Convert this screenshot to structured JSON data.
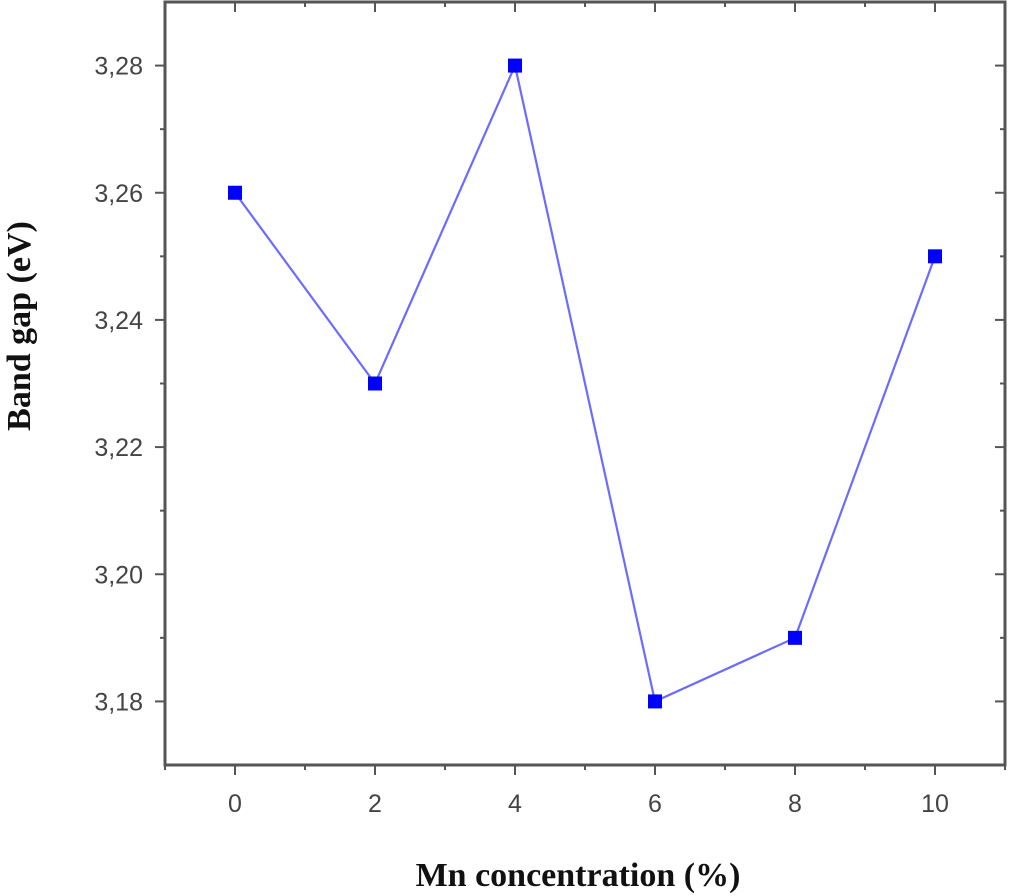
{
  "chart_data": {
    "type": "line",
    "title": "",
    "xlabel": "Mn concentration (%)",
    "ylabel": "Band gap (eV)",
    "x": [
      0,
      2,
      4,
      6,
      8,
      10
    ],
    "series": [
      {
        "name": "Band gap",
        "values": [
          3.26,
          3.23,
          3.28,
          3.18,
          3.19,
          3.25
        ],
        "color": "#0000ff",
        "line_color": "#6b6bff",
        "marker": "square"
      }
    ],
    "xlim": [
      -1,
      11
    ],
    "ylim": [
      3.17,
      3.29
    ],
    "x_ticks": [
      0,
      2,
      4,
      6,
      8,
      10
    ],
    "x_tick_labels": [
      "0",
      "2",
      "4",
      "6",
      "8",
      "10"
    ],
    "y_ticks": [
      3.18,
      3.2,
      3.22,
      3.24,
      3.26,
      3.28
    ],
    "y_tick_labels": [
      "3,18",
      "3,20",
      "3,22",
      "3,24",
      "3,26",
      "3,28"
    ],
    "grid": false,
    "legend": null
  }
}
